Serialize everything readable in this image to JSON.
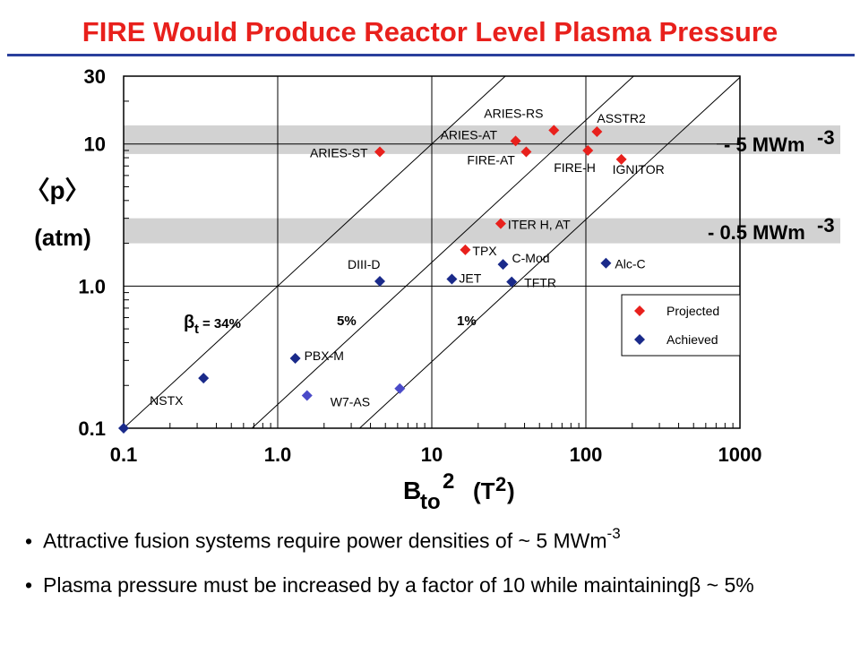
{
  "title": "FIRE Would Produce Reactor Level Plasma Pressure",
  "colors": {
    "title": "#e8201c",
    "rule": "#2a3f9c",
    "projected": "#e8201c",
    "achieved": "#1a2a8a",
    "achieved_stellarator": "#4a4ac8",
    "band": "#d2d2d2"
  },
  "chart_data": {
    "type": "scatter",
    "x_scale": "log",
    "y_scale": "log",
    "xlim": [
      0.1,
      1000
    ],
    "ylim": [
      0.1,
      30
    ],
    "x_ticks": [
      {
        "v": 0.1,
        "label": "0.1"
      },
      {
        "v": 1,
        "label": "1.0"
      },
      {
        "v": 10,
        "label": "10"
      },
      {
        "v": 100,
        "label": "100"
      },
      {
        "v": 1000,
        "label": "1000"
      }
    ],
    "y_ticks": [
      {
        "v": 0.1,
        "label": "0.1"
      },
      {
        "v": 1,
        "label": "1.0"
      },
      {
        "v": 10,
        "label": "10"
      },
      {
        "v": 30,
        "label": "30"
      }
    ],
    "xlabel_main": "B",
    "xlabel_sub": "to",
    "xlabel_sup": "2",
    "xlabel_unit": "(T",
    "xlabel_unit_sup": "2",
    "xlabel_close": ")",
    "ylabel_line1": "〈p〉",
    "ylabel_line2": "(atm)",
    "grid": true,
    "bands": [
      {
        "y_low": 8.5,
        "y_high": 13.5,
        "label": "- 5 MWm",
        "sup": "-3"
      },
      {
        "y_low": 2.0,
        "y_high": 3.0,
        "label": "- 0.5 MWm",
        "sup": "-3"
      }
    ],
    "beta_lines": [
      {
        "label_main": "β",
        "label_sub": "t",
        "label_rest": " = 34%",
        "y_at_x_0_1": 0.1
      },
      {
        "label": "5%",
        "y_at_x_0_1": 0.0147
      },
      {
        "label": "1%",
        "y_at_x_0_1": 0.00294
      }
    ],
    "series": [
      {
        "name": "Projected",
        "points": [
          {
            "label": "ARIES-ST",
            "x": 4.6,
            "y": 8.8
          },
          {
            "label": "ARIES-AT",
            "x": 35,
            "y": 10.5
          },
          {
            "label": "ARIES-RS",
            "x": 62,
            "y": 12.5
          },
          {
            "label": "FIRE-AT",
            "x": 41,
            "y": 8.8
          },
          {
            "label": "ASSTR2",
            "x": 118,
            "y": 12.2
          },
          {
            "label": "FIRE-H",
            "x": 103,
            "y": 9.0
          },
          {
            "label": "IGNITOR",
            "x": 170,
            "y": 7.8
          },
          {
            "label": "ITER H, AT",
            "x": 28,
            "y": 2.75
          },
          {
            "label": "TPX",
            "x": 16.5,
            "y": 1.8
          }
        ]
      },
      {
        "name": "Achieved",
        "points": [
          {
            "label": "DIII-D",
            "x": 4.6,
            "y": 1.08
          },
          {
            "label": "JET",
            "x": 13.5,
            "y": 1.12
          },
          {
            "label": "C-Mod",
            "x": 29,
            "y": 1.42
          },
          {
            "label": "TFTR",
            "x": 33,
            "y": 1.07
          },
          {
            "label": "Alc-C",
            "x": 135,
            "y": 1.45
          },
          {
            "label": "PBX-M",
            "x": 1.3,
            "y": 0.31
          },
          {
            "label": "NSTX",
            "x": 0.33,
            "y": 0.225
          },
          {
            "label": "",
            "x": 0.1,
            "y": 0.1
          },
          {
            "label": "W7-AS",
            "x": 1.55,
            "y": 0.17
          },
          {
            "label": "",
            "x": 6.2,
            "y": 0.19
          }
        ]
      }
    ],
    "legend": {
      "position": "lower-right",
      "items": [
        "Projected",
        "Achieved"
      ]
    }
  },
  "bullets": [
    {
      "text": "Attractive fusion systems require power densities of ~ 5 MWm",
      "sup": "-3"
    },
    {
      "text": "Plasma pressure must be increased by a  factor of 10 while maintainingβ ~ 5%"
    }
  ]
}
